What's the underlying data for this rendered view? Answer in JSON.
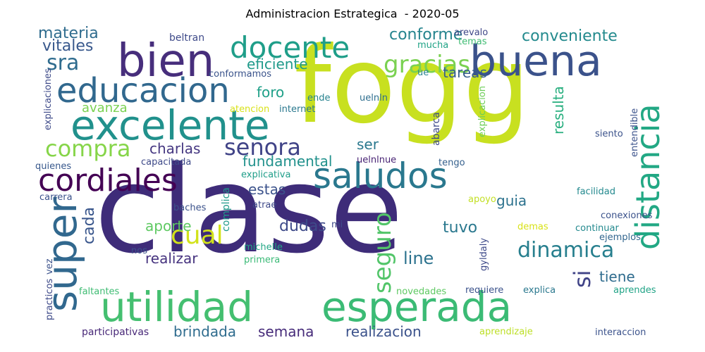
{
  "title": "Administracion Estrategica  - 2020-05",
  "words": [
    {
      "text": "fogg",
      "color": "#c8e020",
      "orientation": "horizontal"
    },
    {
      "text": "clase",
      "color": "#3e2c79",
      "orientation": "horizontal"
    },
    {
      "text": "utilidad",
      "color": "#44bf70",
      "orientation": "horizontal"
    },
    {
      "text": "esperada",
      "color": "#3bbb75",
      "orientation": "horizontal"
    },
    {
      "text": "excelente",
      "color": "#21918c",
      "orientation": "horizontal"
    },
    {
      "text": "bien",
      "color": "#472e7c",
      "orientation": "horizontal"
    },
    {
      "text": "buena",
      "color": "#3b528b",
      "orientation": "horizontal"
    },
    {
      "text": "educacion",
      "color": "#31688e",
      "orientation": "horizontal"
    },
    {
      "text": "super",
      "color": "#31688e",
      "orientation": "vertical"
    },
    {
      "text": "distancia",
      "color": "#22a884",
      "orientation": "vertical"
    },
    {
      "text": "saludos",
      "color": "#2a788e",
      "orientation": "horizontal"
    },
    {
      "text": "cordiales",
      "color": "#440154",
      "orientation": "horizontal"
    },
    {
      "text": "docente",
      "color": "#1f9e89",
      "orientation": "horizontal"
    },
    {
      "text": "gracias",
      "color": "#7ad151",
      "orientation": "horizontal"
    },
    {
      "text": "compra",
      "color": "#86d549",
      "orientation": "horizontal"
    },
    {
      "text": "senora",
      "color": "#404387",
      "orientation": "horizontal"
    },
    {
      "text": "sra",
      "color": "#2f6c8e",
      "orientation": "horizontal"
    },
    {
      "text": "cual",
      "color": "#d2e21b",
      "orientation": "horizontal"
    },
    {
      "text": "dinamica",
      "color": "#277f8e",
      "orientation": "horizontal"
    },
    {
      "text": "seguro",
      "color": "#52c569",
      "orientation": "vertical"
    },
    {
      "text": "si",
      "color": "#404387",
      "orientation": "vertical"
    },
    {
      "text": "conforme",
      "color": "#25848e",
      "orientation": "horizontal"
    },
    {
      "text": "conveniente",
      "color": "#238a8d",
      "orientation": "horizontal"
    },
    {
      "text": "materia",
      "color": "#2f6c8e",
      "orientation": "horizontal"
    },
    {
      "text": "vitales",
      "color": "#38588c",
      "orientation": "horizontal"
    },
    {
      "text": "eficiente",
      "color": "#1f9a8a",
      "orientation": "horizontal"
    },
    {
      "text": "foro",
      "color": "#1fa088",
      "orientation": "horizontal"
    },
    {
      "text": "tareas",
      "color": "#365c8d",
      "orientation": "horizontal"
    },
    {
      "text": "avanza",
      "color": "#7ad151",
      "orientation": "horizontal"
    },
    {
      "text": "charlas",
      "color": "#453781",
      "orientation": "horizontal"
    },
    {
      "text": "fundamental",
      "color": "#21918c",
      "orientation": "horizontal"
    },
    {
      "text": "ser",
      "color": "#2a788e",
      "orientation": "horizontal"
    },
    {
      "text": "estas",
      "color": "#3b528b",
      "orientation": "horizontal"
    },
    {
      "text": "guia",
      "color": "#2c728e",
      "orientation": "horizontal"
    },
    {
      "text": "aporte",
      "color": "#5ec962",
      "orientation": "horizontal"
    },
    {
      "text": "dudas",
      "color": "#3e4a89",
      "orientation": "horizontal"
    },
    {
      "text": "tuvo",
      "color": "#2a788e",
      "orientation": "horizontal"
    },
    {
      "text": "realizar",
      "color": "#46337f",
      "orientation": "horizontal"
    },
    {
      "text": "line",
      "color": "#2c728e",
      "orientation": "horizontal"
    },
    {
      "text": "tiene",
      "color": "#2f6c8e",
      "orientation": "horizontal"
    },
    {
      "text": "cada",
      "color": "#39568c",
      "orientation": "vertical"
    },
    {
      "text": "resulta",
      "color": "#29af7f",
      "orientation": "vertical"
    },
    {
      "text": "brindada",
      "color": "#2f6c8e",
      "orientation": "horizontal"
    },
    {
      "text": "semana",
      "color": "#472c7a",
      "orientation": "horizontal"
    },
    {
      "text": "realizacion",
      "color": "#3b528b",
      "orientation": "horizontal"
    },
    {
      "text": "participativas",
      "color": "#482878",
      "orientation": "horizontal"
    },
    {
      "text": "beltran",
      "color": "#3e4a89",
      "orientation": "horizontal"
    },
    {
      "text": "arevalo",
      "color": "#3f4788",
      "orientation": "horizontal"
    },
    {
      "text": "mucha",
      "color": "#20a386",
      "orientation": "horizontal"
    },
    {
      "text": "temas",
      "color": "#3fbc73",
      "orientation": "horizontal"
    },
    {
      "text": "ue",
      "color": "#26828e",
      "orientation": "horizontal"
    },
    {
      "text": "conformamos",
      "color": "#3a538b",
      "orientation": "horizontal"
    },
    {
      "text": "explicaciones",
      "color": "#3e4a89",
      "orientation": "vertical"
    },
    {
      "text": "atencion",
      "color": "#d8e219",
      "orientation": "horizontal"
    },
    {
      "text": "internet",
      "color": "#2a788e",
      "orientation": "horizontal"
    },
    {
      "text": "ende",
      "color": "#26828e",
      "orientation": "horizontal"
    },
    {
      "text": "uelnln",
      "color": "#2e6e8e",
      "orientation": "horizontal"
    },
    {
      "text": "explicacion",
      "color": "#6ece58",
      "orientation": "vertical"
    },
    {
      "text": "abarca",
      "color": "#3e4989",
      "orientation": "vertical"
    },
    {
      "text": "entendible",
      "color": "#3b528b",
      "orientation": "vertical"
    },
    {
      "text": "siento",
      "color": "#3b528b",
      "orientation": "horizontal"
    },
    {
      "text": "uelnlnue",
      "color": "#482374",
      "orientation": "horizontal"
    },
    {
      "text": "tengo",
      "color": "#35608d",
      "orientation": "horizontal"
    },
    {
      "text": "explicativa",
      "color": "#1f9e89",
      "orientation": "horizontal"
    },
    {
      "text": "quienes",
      "color": "#38588c",
      "orientation": "horizontal"
    },
    {
      "text": "capacitada",
      "color": "#3e4a89",
      "orientation": "horizontal"
    },
    {
      "text": "carrera",
      "color": "#3b528b",
      "orientation": "horizontal"
    },
    {
      "text": "baches",
      "color": "#3b528b",
      "orientation": "horizontal"
    },
    {
      "text": "complica",
      "color": "#1f9a8a",
      "orientation": "vertical"
    },
    {
      "text": "atrae",
      "color": "#3e4989",
      "orientation": "horizontal"
    },
    {
      "text": "apoyo",
      "color": "#c2df23",
      "orientation": "horizontal"
    },
    {
      "text": "facilidad",
      "color": "#23898e",
      "orientation": "horizontal"
    },
    {
      "text": "conexiones",
      "color": "#3b528b",
      "orientation": "horizontal"
    },
    {
      "text": "continuar",
      "color": "#23898e",
      "orientation": "horizontal"
    },
    {
      "text": "ejemplos",
      "color": "#32658e",
      "orientation": "horizontal"
    },
    {
      "text": "demas",
      "color": "#d8e219",
      "orientation": "horizontal"
    },
    {
      "text": "mi",
      "color": "#3e4989",
      "orientation": "horizontal"
    },
    {
      "text": "michelle",
      "color": "#22a785",
      "orientation": "horizontal"
    },
    {
      "text": "primera",
      "color": "#3aba76",
      "orientation": "horizontal"
    },
    {
      "text": "nos",
      "color": "#3b528b",
      "orientation": "horizontal"
    },
    {
      "text": "gyldaly",
      "color": "#3e4a89",
      "orientation": "vertical"
    },
    {
      "text": "vez",
      "color": "#3b528b",
      "orientation": "vertical"
    },
    {
      "text": "practicos",
      "color": "#3e4a89",
      "orientation": "vertical"
    },
    {
      "text": "faltantes",
      "color": "#3fbc73",
      "orientation": "horizontal"
    },
    {
      "text": "novedades",
      "color": "#5ec962",
      "orientation": "horizontal"
    },
    {
      "text": "requiere",
      "color": "#3b528b",
      "orientation": "horizontal"
    },
    {
      "text": "explica",
      "color": "#2a788e",
      "orientation": "horizontal"
    },
    {
      "text": "aprendes",
      "color": "#20a386",
      "orientation": "horizontal"
    },
    {
      "text": "aprendizaje",
      "color": "#bddf26",
      "orientation": "horizontal"
    },
    {
      "text": "interaccion",
      "color": "#3b528b",
      "orientation": "horizontal"
    }
  ]
}
